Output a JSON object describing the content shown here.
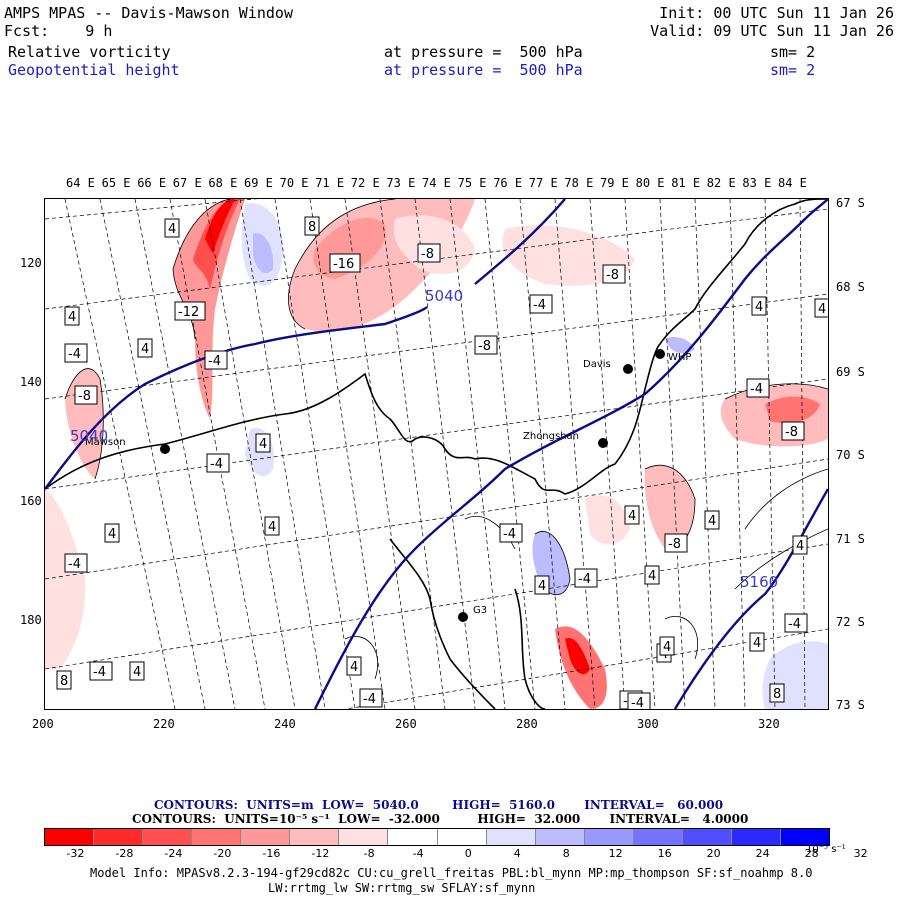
{
  "header": {
    "title": "AMPS MPAS -- Davis-Mawson Window",
    "fcst": "Fcst:    9 h",
    "init": "Init: 00 UTC Sun 11 Jan 26",
    "valid": "Valid: 09 UTC Sun 11 Jan 26",
    "field1": {
      "name": "Relative vorticity",
      "level": "at pressure =  500 hPa",
      "sm": "sm= 2"
    },
    "field2": {
      "name": "Geopotential height",
      "level": "at pressure =  500 hPa",
      "sm": "sm= 2"
    }
  },
  "axes": {
    "top_lon": [
      "64 E",
      "65 E",
      "66 E",
      "67 E",
      "68 E",
      "69 E",
      "70 E",
      "71 E",
      "72 E",
      "73 E",
      "74 E",
      "75 E",
      "76 E",
      "77 E",
      "78 E",
      "79 E",
      "80 E",
      "81 E",
      "82 E",
      "83 E",
      "84 E"
    ],
    "right_lat": [
      "67 S",
      "68 S",
      "69 S",
      "70 S",
      "71 S",
      "72 S",
      "73 S"
    ],
    "left_y": [
      "120",
      "140",
      "160",
      "180"
    ],
    "bottom_x": [
      "200",
      "220",
      "240",
      "260",
      "280",
      "300",
      "320"
    ]
  },
  "stations": [
    {
      "name": "Mawson"
    },
    {
      "name": "Davis"
    },
    {
      "name": "WHP"
    },
    {
      "name": "Zhongshan"
    },
    {
      "name": "G3"
    }
  ],
  "height_labels": [
    "5040",
    "5040",
    "5160"
  ],
  "vort_labels": [
    "4",
    "8",
    "-16",
    "-8",
    "-8",
    "4",
    "-12",
    "-4",
    "4",
    "-4",
    "-4",
    "-8",
    "-8",
    "-4",
    "4",
    "4",
    "4",
    "-8",
    "-4",
    "-4",
    "-4",
    "4",
    "-8",
    "4",
    "4",
    "4",
    "4",
    "-4",
    "-4",
    "4",
    "-4",
    "4",
    "8",
    "4",
    "4",
    "-4",
    "4",
    "-4",
    "4",
    "4",
    "-4",
    "8"
  ],
  "colors": {
    "height_contour": "#0a0a8c",
    "neg_strong": "#ff0000",
    "pos_strong": "#0000ff"
  },
  "contour_info": {
    "line1": "CONTOURS:  UNITS=m  LOW=  5040.0        HIGH=  5160.0       INTERVAL=   60.000",
    "line2": "CONTOURS:  UNITS=10⁻⁵ s⁻¹  LOW=  -32.000         HIGH=  32.000       INTERVAL=   4.0000"
  },
  "colorbar": {
    "colors": [
      "#ff0000",
      "#ff2a2a",
      "#ff4f4f",
      "#ff7373",
      "#ff9898",
      "#ffbcbc",
      "#ffe0e0",
      "#ffffff",
      "#ffffff",
      "#e0e0ff",
      "#bcbcff",
      "#9898ff",
      "#7373ff",
      "#4f4fff",
      "#2a2aff",
      "#0000ff"
    ],
    "ticks": [
      "-32",
      "-28",
      "-24",
      "-20",
      "-16",
      "-12",
      "-8",
      "-4",
      "0",
      "4",
      "8",
      "12",
      "16",
      "20",
      "24",
      "28",
      "32"
    ],
    "unit": "10⁻⁵ s⁻¹"
  },
  "model_info": {
    "line1": "Model Info: MPASv8.2.3-194-gf29cd82c CU:cu_grell_freitas PBL:bl_mynn MP:mp_thompson SF:sf_noahmp 8.0",
    "line2": "LW:rrtmg_lw SW:rrtmg_sw SFLAY:sf_mynn"
  }
}
